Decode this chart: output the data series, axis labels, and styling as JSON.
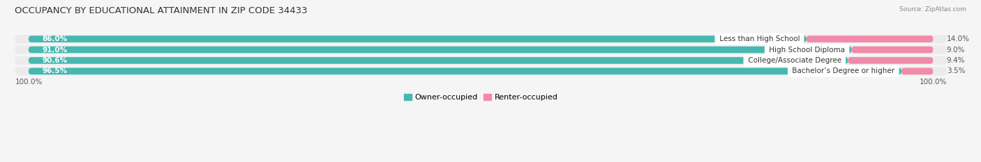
{
  "title": "OCCUPANCY BY EDUCATIONAL ATTAINMENT IN ZIP CODE 34433",
  "source": "Source: ZipAtlas.com",
  "categories": [
    "Less than High School",
    "High School Diploma",
    "College/Associate Degree",
    "Bachelor’s Degree or higher"
  ],
  "owner_pct": [
    86.0,
    91.0,
    90.6,
    96.5
  ],
  "renter_pct": [
    14.0,
    9.0,
    9.4,
    3.5
  ],
  "owner_color": "#45b8b0",
  "renter_color": "#f28aaa",
  "bar_bg_color": "#e0e0e0",
  "row_bg_color": "#ebebeb",
  "bg_color": "#f5f5f5",
  "bar_height": 0.62,
  "figsize": [
    14.06,
    2.33
  ],
  "dpi": 100,
  "axis_label_left": "100.0%",
  "axis_label_right": "100.0%",
  "title_fontsize": 9.5,
  "label_fontsize": 7.5,
  "bar_text_fontsize": 7.5,
  "legend_fontsize": 8,
  "owner_label": "Owner-occupied",
  "renter_label": "Renter-occupied"
}
